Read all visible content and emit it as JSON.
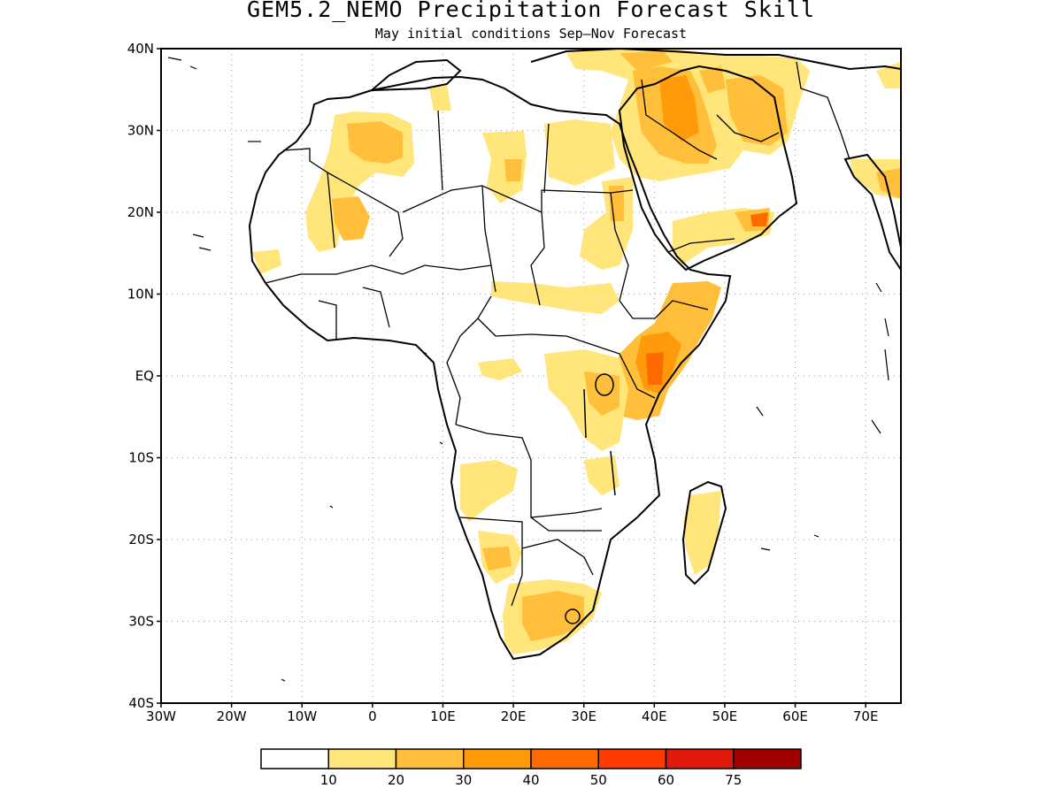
{
  "title": "GEM5.2_NEMO Precipitation Forecast Skill",
  "subtitle": "May initial conditions  Sep–Nov Forecast",
  "lat_labels": [
    "40N",
    "30N",
    "20N",
    "10N",
    "EQ",
    "10S",
    "20S",
    "30S",
    "40S"
  ],
  "lon_labels": [
    "30W",
    "20W",
    "10W",
    "0",
    "10E",
    "20E",
    "30E",
    "40E",
    "50E",
    "60E",
    "70E"
  ],
  "colorbar": {
    "colors": [
      "#ffffff",
      "#ffe57a",
      "#ffbf3a",
      "#ff9a0a",
      "#ff6a00",
      "#ff3a00",
      "#df1a0a",
      "#a00000"
    ],
    "labels": [
      "10",
      "20",
      "30",
      "40",
      "50",
      "60",
      "75"
    ]
  },
  "map": {
    "lon_range": [
      -30,
      75
    ],
    "lat_range": [
      -40,
      40
    ],
    "grid": "dotted"
  }
}
